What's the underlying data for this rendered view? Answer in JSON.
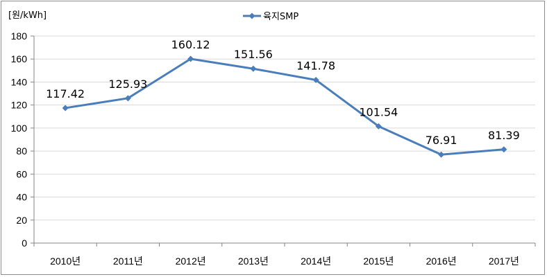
{
  "chart_data": {
    "type": "line",
    "unit_label": "[원/kWh]",
    "categories": [
      "2010년",
      "2011년",
      "2012년",
      "2013년",
      "2014년",
      "2015년",
      "2016년",
      "2017년"
    ],
    "series": [
      {
        "name": "육지SMP",
        "values": [
          117.42,
          125.93,
          160.12,
          151.56,
          141.78,
          101.54,
          76.91,
          81.39
        ],
        "data_labels": [
          "117.42",
          "125.93",
          "160.12",
          "151.56",
          "141.78",
          "101.54",
          "76.91",
          "81.39"
        ],
        "color": "#4a7ebb"
      }
    ],
    "ylim": [
      0,
      180
    ],
    "yticks": [
      0,
      20,
      40,
      60,
      80,
      100,
      120,
      140,
      160,
      180
    ],
    "grid": true,
    "legend": "top-center"
  }
}
